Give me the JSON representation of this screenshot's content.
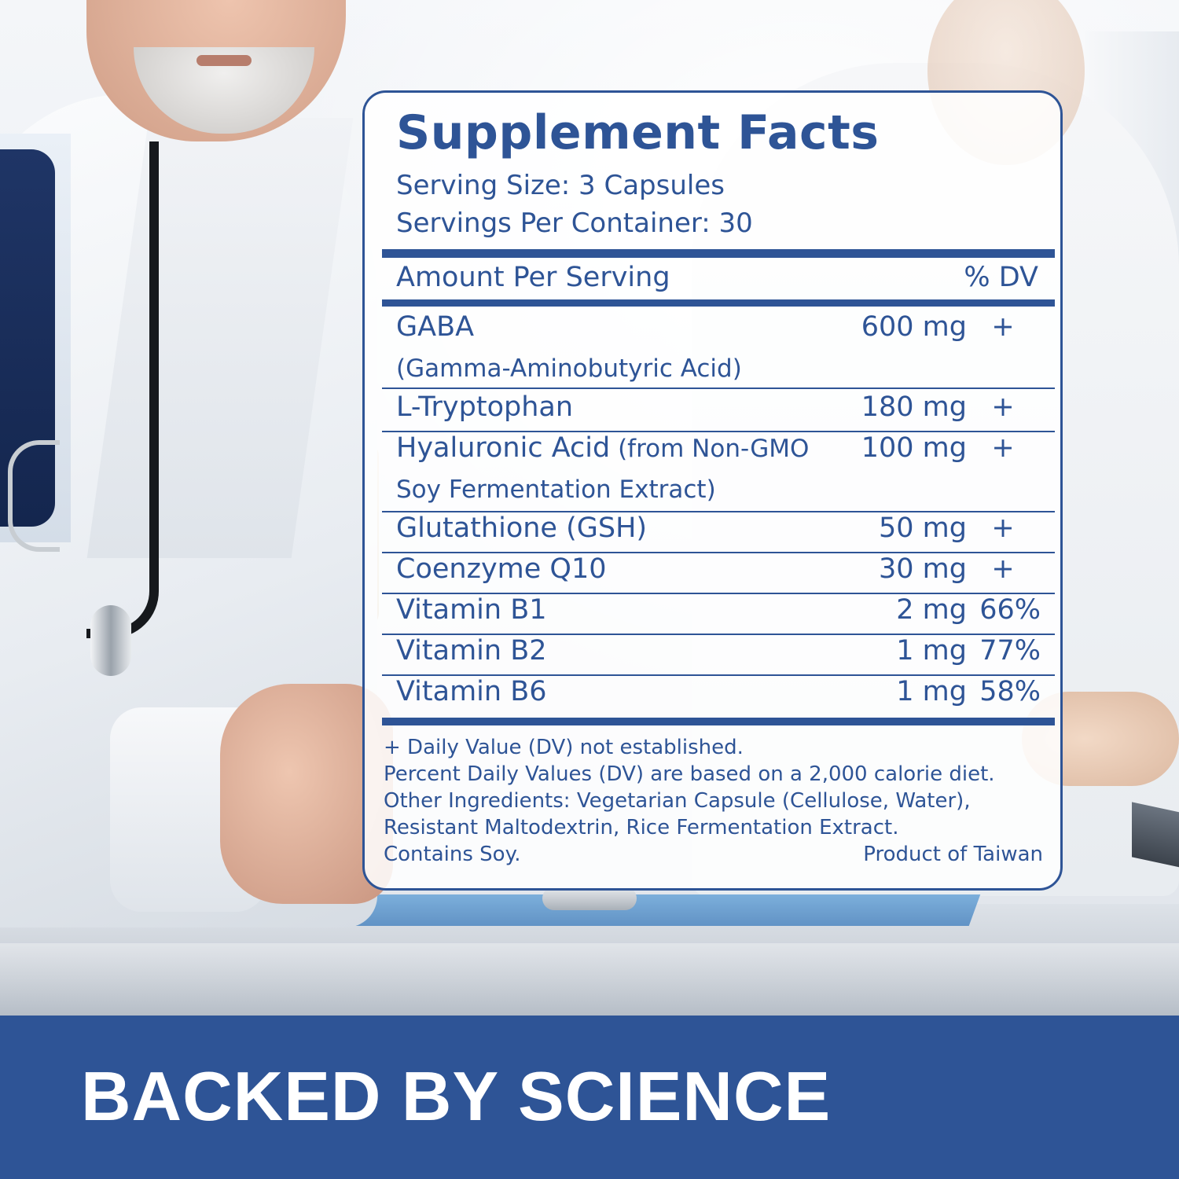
{
  "panel": {
    "title": "Supplement Facts",
    "serving_size": "Serving Size: 3 Capsules",
    "servings_per_container": "Servings Per Container: 30",
    "header_left": "Amount Per Serving",
    "header_right": "% DV"
  },
  "ingredients": [
    {
      "name": "GABA",
      "sub": "(Gamma-Aminobutyric Acid)",
      "amount": "600 mg",
      "dv": "+"
    },
    {
      "name": "L-Tryptophan",
      "amount": "180 mg",
      "dv": "+"
    },
    {
      "name": "Hyaluronic Acid",
      "name_note": " (from Non-GMO",
      "sub": "Soy Fermentation Extract)",
      "amount": "100 mg",
      "dv": "+"
    },
    {
      "name": "Glutathione (GSH)",
      "amount": "50 mg",
      "dv": "+"
    },
    {
      "name": "Coenzyme Q10",
      "amount": "30 mg",
      "dv": "+"
    },
    {
      "name": "Vitamin B1",
      "amount": "2 mg",
      "dv": "66%"
    },
    {
      "name": "Vitamin B2",
      "amount": "1 mg",
      "dv": "77%"
    },
    {
      "name": "Vitamin B6",
      "amount": "1 mg",
      "dv": "58%"
    }
  ],
  "footnotes": {
    "line1": "+ Daily Value (DV) not established.",
    "line2": "Percent Daily Values (DV) are based on a 2,000 calorie diet.",
    "line3": "Other Ingredients: Vegetarian Capsule (Cellulose, Water),",
    "line4": "Resistant Maltodextrin, Rice Fermentation Extract.",
    "line5_left": "Contains Soy.",
    "line5_right": "Product of Taiwan"
  },
  "banner": {
    "text": "BACKED BY SCIENCE"
  },
  "colors": {
    "brand_blue": "#2e5496",
    "panel_background": "#ffffff",
    "banner_text": "#ffffff"
  }
}
